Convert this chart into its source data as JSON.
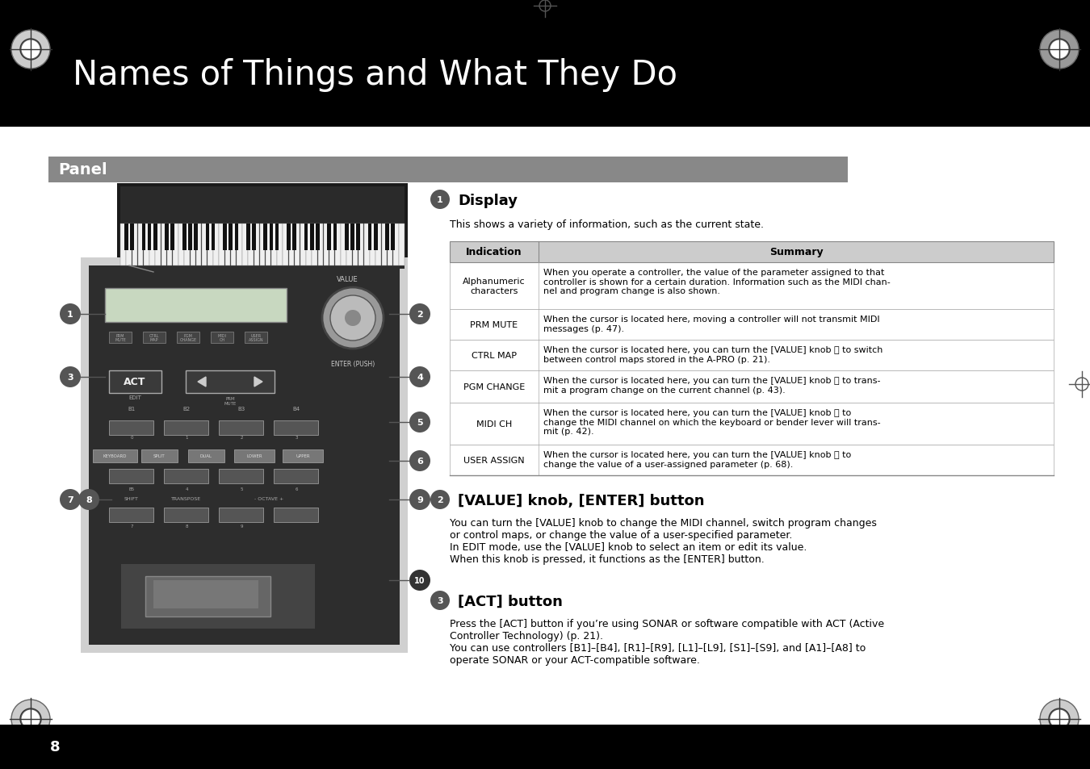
{
  "page_bg": "#ffffff",
  "header_bg": "#000000",
  "header_text": "Names of Things and What They Do",
  "header_text_color": "#ffffff",
  "header_font_size": 26,
  "panel_bar_bg": "#888888",
  "panel_bar_text": "Panel",
  "panel_bar_text_color": "#ffffff",
  "panel_bar_font_size": 13,
  "section1_title": "Display",
  "section1_intro": "This shows a variety of information, such as the current state.",
  "table_header_bg": "#cccccc",
  "table_col1": "Indication",
  "table_col2": "Summary",
  "table_rows": [
    [
      "Alphanumeric\ncharacters",
      "When you operate a controller, the value of the parameter assigned to that\ncontroller is shown for a certain duration. Information such as the MIDI chan-\nnel and program change is also shown."
    ],
    [
      "PRM MUTE",
      "When the cursor is located here, moving a controller will not transmit MIDI\nmessages (p. 47)."
    ],
    [
      "CTRL MAP",
      "When the cursor is located here, you can turn the [VALUE] knob Ⓐ to switch\nbetween control maps stored in the A-PRO (p. 21)."
    ],
    [
      "PGM CHANGE",
      "When the cursor is located here, you can turn the [VALUE] knob Ⓐ to trans-\nmit a program change on the current channel (p. 43)."
    ],
    [
      "MIDI CH",
      "When the cursor is located here, you can turn the [VALUE] knob Ⓐ to\nchange the MIDI channel on which the keyboard or bender lever will trans-\nmit (p. 42)."
    ],
    [
      "USER ASSIGN",
      "When the cursor is located here, you can turn the [VALUE] knob Ⓐ to\nchange the value of a user-assigned parameter (p. 68)."
    ]
  ],
  "section2_title": "[VALUE] knob, [ENTER] button",
  "section2_text": "You can turn the [VALUE] knob to change the MIDI channel, switch program changes\nor control maps, or change the value of a user-specified parameter.\nIn EDIT mode, use the [VALUE] knob to select an item or edit its value.\nWhen this knob is pressed, it functions as the [ENTER] button.",
  "section3_title": "[ACT] button",
  "section3_text": "Press the [ACT] button if you’re using SONAR or software compatible with ACT (Active\nController Technology) (p. 21).\nYou can use controllers [B1]–[B4], [R1]–[R9], [L1]–[L9], [S1]–[S9], and [A1]–[A8] to\noperate SONAR or your ACT-compatible software.",
  "footer_text": "8"
}
